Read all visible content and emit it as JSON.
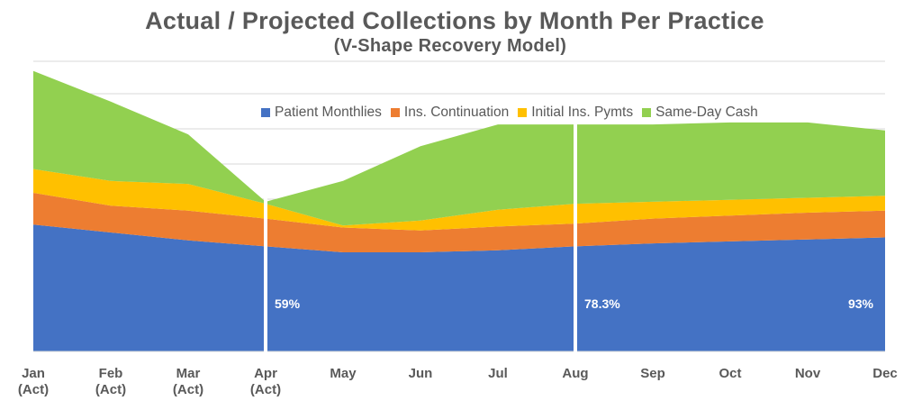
{
  "chart_data": {
    "type": "area",
    "stacked": true,
    "title": "Actual / Projected Collections by Month Per Practice",
    "subtitle": "(V-Shape Recovery Model)",
    "categories": [
      [
        "Jan",
        "(Act)"
      ],
      [
        "Feb",
        "(Act)"
      ],
      [
        "Mar",
        "(Act)"
      ],
      [
        "Apr",
        "(Act)"
      ],
      [
        "May"
      ],
      [
        "Jun"
      ],
      [
        "Jul"
      ],
      [
        "Aug"
      ],
      [
        "Sep"
      ],
      [
        "Oct"
      ],
      [
        "Nov"
      ],
      [
        "Dec"
      ]
    ],
    "series": [
      {
        "name": "Patient Monthlies",
        "color": "#4472C4",
        "values": [
          128,
          120,
          112,
          106,
          100,
          100,
          102,
          106,
          109,
          111,
          113,
          115
        ]
      },
      {
        "name": "Ins. Continuation",
        "color": "#ED7D31",
        "values": [
          32,
          27,
          30,
          28,
          25,
          22,
          24,
          23,
          25,
          26,
          27,
          27
        ]
      },
      {
        "name": "Initial Ins. Pymts",
        "color": "#FFC000",
        "values": [
          24,
          25,
          27,
          15,
          2,
          10,
          17,
          20,
          17,
          16,
          15,
          15
        ]
      },
      {
        "name": "Same-Day Cash",
        "color": "#92D050",
        "values": [
          99,
          80,
          50,
          2,
          45,
          75,
          86,
          80,
          78,
          78,
          76,
          66
        ]
      }
    ],
    "ylim": [
      0,
      300
    ],
    "grid": true,
    "legend": "top-right",
    "annotations": [
      {
        "at": "Apr",
        "label": "59%"
      },
      {
        "at": "Aug",
        "label": "78.3%"
      },
      {
        "at": "Dec",
        "label": "93%"
      }
    ]
  }
}
